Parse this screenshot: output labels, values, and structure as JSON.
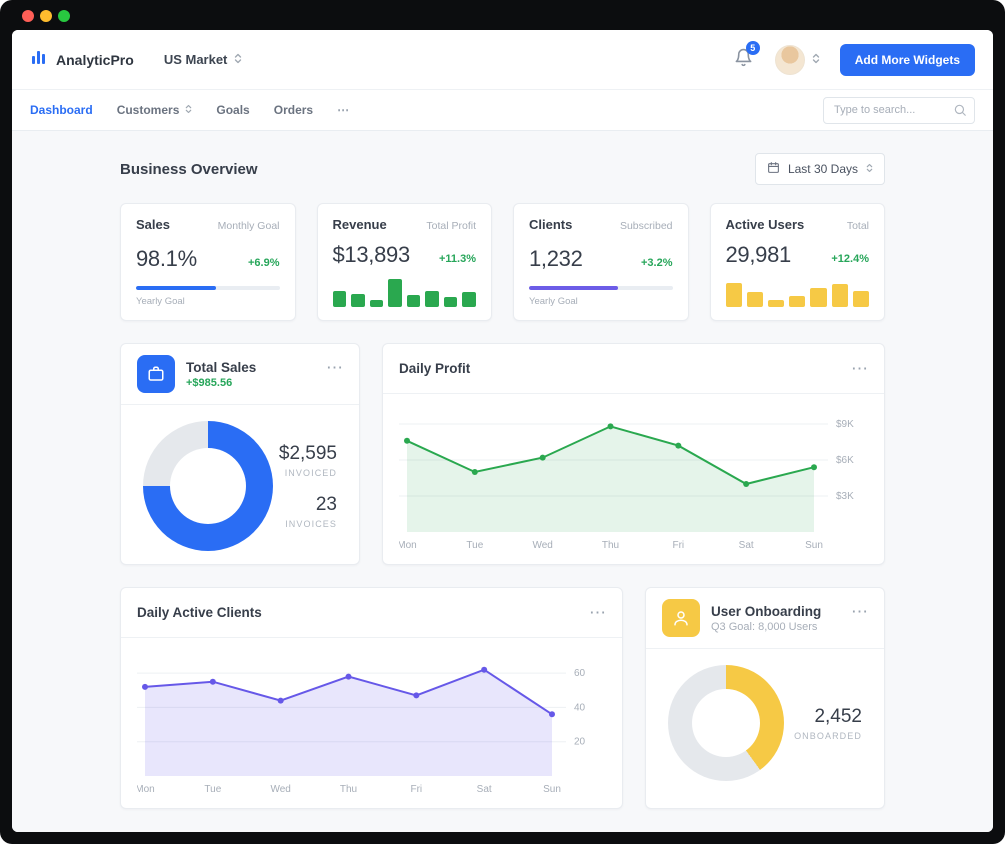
{
  "window": {
    "controls": [
      "close",
      "minimize",
      "zoom"
    ]
  },
  "header": {
    "brand": "AnalyticPro",
    "market": "US Market",
    "notifications": "5",
    "add_widgets": "Add More Widgets"
  },
  "nav": {
    "tabs": [
      "Dashboard",
      "Customers",
      "Goals",
      "Orders",
      "⋯"
    ],
    "search_placeholder": "Type to search..."
  },
  "page": {
    "title": "Business Overview",
    "date_range": "Last 30 Days"
  },
  "menu_dots": "⋯",
  "colors": {
    "accent_blue": "#2a6df4",
    "green": "#2aa84f",
    "delta_green": "#27a65a",
    "purple": "#6c5ce7",
    "yellow": "#f6c945",
    "muted": "#a7aeb8"
  },
  "stats": {
    "sales": {
      "title": "Sales",
      "subtitle": "Monthly Goal",
      "value": "98.1%",
      "delta": "+6.9%",
      "footer": "Yearly Goal"
    },
    "revenue": {
      "title": "Revenue",
      "subtitle": "Total Profit",
      "value": "$13,893",
      "delta": "+11.3%"
    },
    "clients": {
      "title": "Clients",
      "subtitle": "Subscribed",
      "value": "1,232",
      "delta": "+3.2%",
      "footer": "Yearly Goal"
    },
    "active_users": {
      "title": "Active Users",
      "subtitle": "Total",
      "value": "29,981",
      "delta": "+12.4%"
    }
  },
  "total_sales": {
    "title": "Total Sales",
    "delta": "+$985.56",
    "invoiced_value": "$2,595",
    "invoiced_label": "INVOICED",
    "invoices_value": "23",
    "invoices_label": "INVOICES"
  },
  "daily_profit_card": {
    "title": "Daily Profit"
  },
  "daily_clients_card": {
    "title": "Daily Active Clients"
  },
  "onboarding": {
    "title": "User Onboarding",
    "subtitle": "Q3 Goal: 8,000 Users",
    "value": "2,452",
    "label": "ONBOARDED"
  },
  "charts": {
    "sales_progress": {
      "type": "progress",
      "percent": 56,
      "color": "#2a6df4",
      "track": "#e9edf2"
    },
    "clients_progress": {
      "type": "progress",
      "percent": 62,
      "color": "#6c5ce7",
      "track": "#e9edf2"
    },
    "revenue_bars": {
      "type": "minibar",
      "color": "#2aa84f",
      "values": [
        0.55,
        0.45,
        0.22,
        0.95,
        0.4,
        0.55,
        0.35,
        0.5
      ]
    },
    "users_bars": {
      "type": "minibar",
      "color": "#f6c945",
      "values": [
        0.8,
        0.5,
        0.22,
        0.38,
        0.65,
        0.78,
        0.55
      ]
    },
    "sales_donut": {
      "type": "donut",
      "percent": 75,
      "color": "#2a6df4",
      "track": "#e5e8ec"
    },
    "onboarding_donut": {
      "type": "donut",
      "percent": 40,
      "color": "#f6c945",
      "track": "#e5e8ec"
    },
    "daily_profit": {
      "type": "line",
      "color": "#2aa84f",
      "fill": "rgba(42,168,79,0.12)",
      "x": [
        "Mon",
        "Tue",
        "Wed",
        "Thu",
        "Fri",
        "Sat",
        "Sun"
      ],
      "values": [
        7.6,
        5.0,
        6.2,
        8.8,
        7.2,
        4.0,
        5.4
      ],
      "ymin": 0,
      "ymax": 10,
      "yticks": [
        {
          "v": 9,
          "label": "$9K"
        },
        {
          "v": 6,
          "label": "$6K"
        },
        {
          "v": 3,
          "label": "$3K"
        }
      ]
    },
    "daily_clients": {
      "type": "line",
      "color": "#6658e8",
      "fill": "rgba(102,88,232,0.15)",
      "x": [
        "Mon",
        "Tue",
        "Wed",
        "Thu",
        "Fri",
        "Sat",
        "Sun"
      ],
      "values": [
        52,
        55,
        44,
        58,
        47,
        62,
        36
      ],
      "ymin": 0,
      "ymax": 70,
      "yticks": [
        {
          "v": 60,
          "label": "60"
        },
        {
          "v": 40,
          "label": "40"
        },
        {
          "v": 20,
          "label": "20"
        }
      ]
    }
  }
}
